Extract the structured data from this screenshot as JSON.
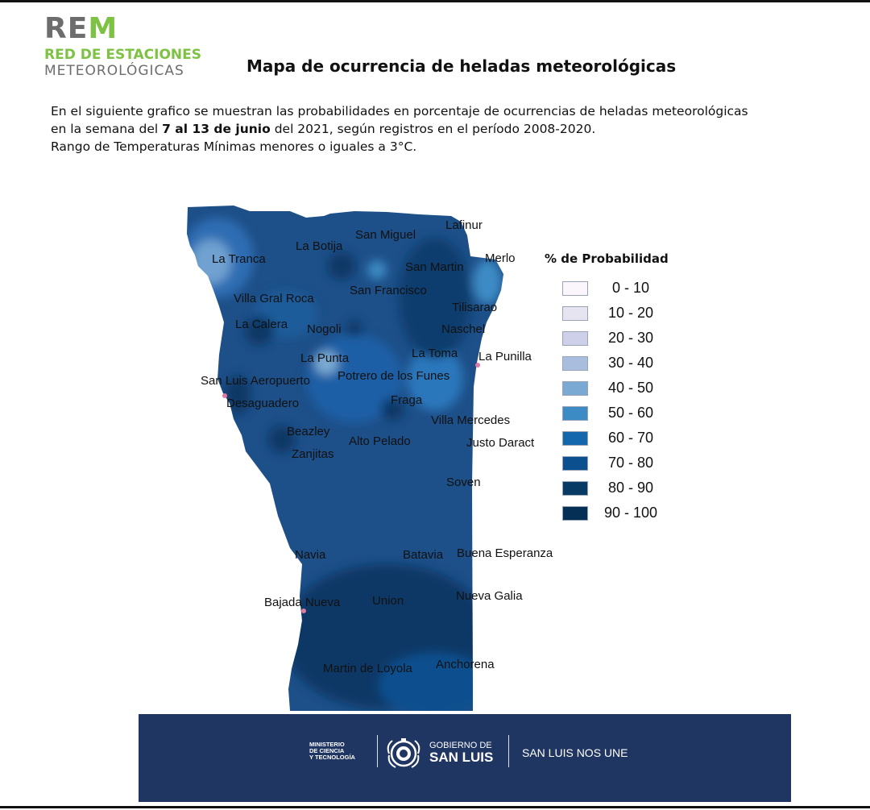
{
  "logo": {
    "rem_prefix": "RE",
    "rem_suffix": "M",
    "line1": "RED DE ESTACIONES",
    "line2": "METEOROLÓGICAS"
  },
  "title": "Mapa de ocurrencia de heladas meteorológicas",
  "description": {
    "line1": "En el siguiente grafico se muestran las probabilidades en porcentaje de ocurrencias de heladas meteorológicas",
    "line2_pre": "en la semana del ",
    "line2_bold": "7 al 13 de junio",
    "line2_post": " del 2021, según registros en el período 2008-2020.",
    "line3": "Rango de Temperaturas Mínimas menores o iguales a 3°C."
  },
  "map": {
    "base_color": "#1d4f88",
    "localities": [
      "Lafinur",
      "San Miguel",
      "La Botija",
      "La Tranca",
      "San Martin",
      "Merlo",
      "San Francisco",
      "Villa Gral Roca",
      "Tilisarao",
      "La Calera",
      "Nogoli",
      "Naschel",
      "La Toma",
      "La Punilla",
      "La Punta",
      "San Luis Aeropuerto",
      "Potrero de los Funes",
      "Desaguadero",
      "Fraga",
      "Villa Mercedes",
      "Beazley",
      "Alto Pelado",
      "Justo Daract",
      "Zanjitas",
      "Soven",
      "Navia",
      "Batavia",
      "Buena Esperanza",
      "Bajada Nueva",
      "Union",
      "Nueva Galia",
      "Martin de Loyola",
      "Anchorena"
    ]
  },
  "legend": {
    "title": "% de Probabilidad",
    "items": [
      {
        "label": "0 - 10",
        "color": "#fbf6fb"
      },
      {
        "label": "10 - 20",
        "color": "#e7e4f1"
      },
      {
        "label": "20 - 30",
        "color": "#cdd0e8"
      },
      {
        "label": "30 - 40",
        "color": "#a9bedf"
      },
      {
        "label": "40 - 50",
        "color": "#7aaad3"
      },
      {
        "label": "50 - 60",
        "color": "#3d8bc5"
      },
      {
        "label": "60 - 70",
        "color": "#1466ad"
      },
      {
        "label": "70 - 80",
        "color": "#0b4f8e"
      },
      {
        "label": "80 - 90",
        "color": "#083a66"
      },
      {
        "label": "90 - 100",
        "color": "#062f55"
      }
    ]
  },
  "footer": {
    "ministry": [
      "MINISTERIO",
      "DE CIENCIA",
      "Y TECNOLOGÍA"
    ],
    "gov_line1": "GOBIERNO DE",
    "gov_line2": "SAN LUIS",
    "slogan": "SAN LUIS NOS UNE",
    "background": "#1f3562"
  }
}
